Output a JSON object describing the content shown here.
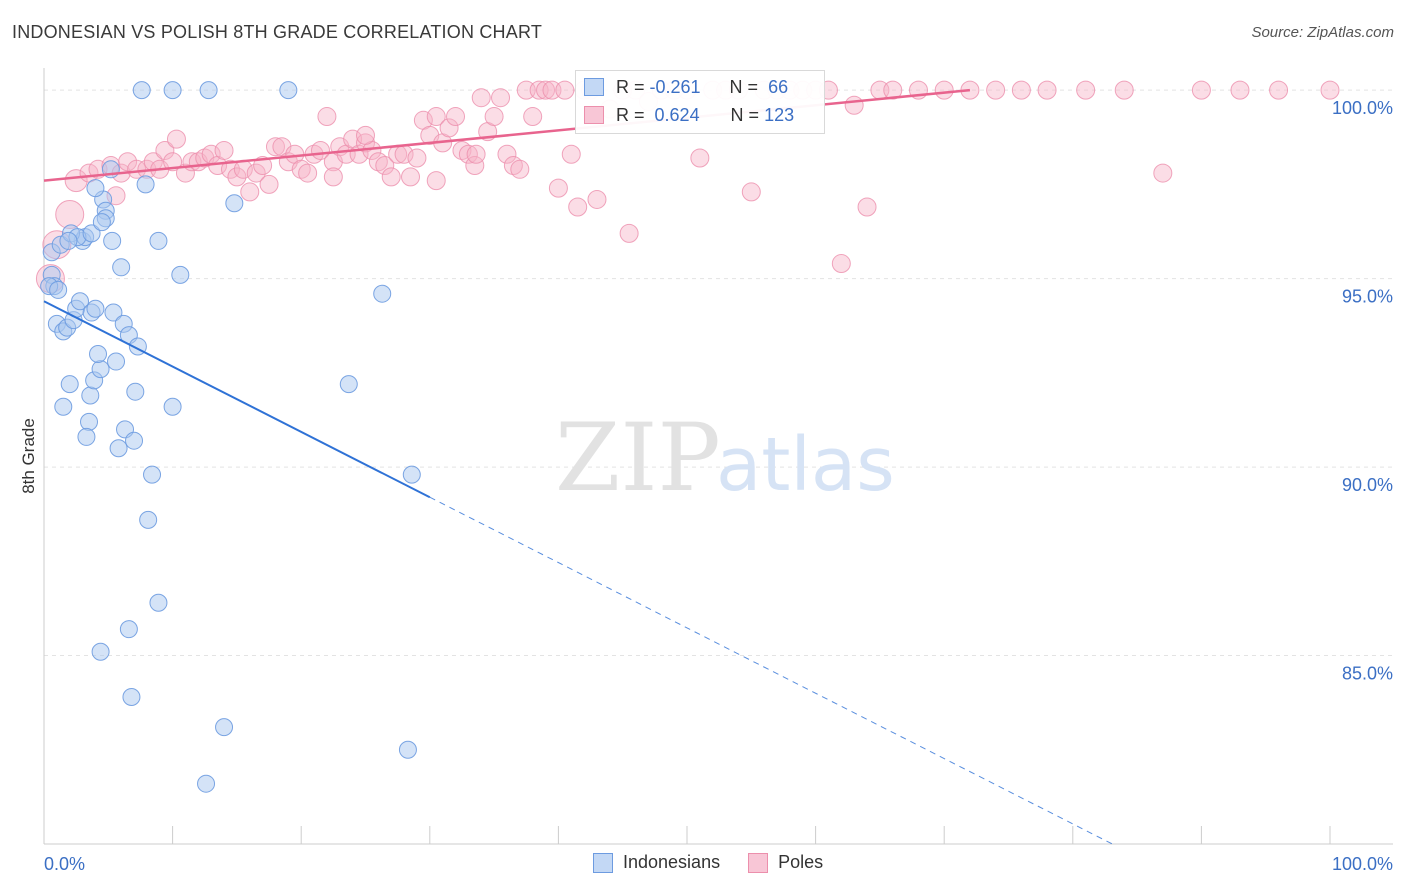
{
  "header": {
    "title": "INDONESIAN VS POLISH 8TH GRADE CORRELATION CHART",
    "source": "Source: ZipAtlas.com"
  },
  "watermark": {
    "zip": "ZIP",
    "atlas": "atlas"
  },
  "legend": {
    "series": [
      {
        "r_label": "R =",
        "r_value": "-0.261",
        "n_label": "N =",
        "n_value": "66"
      },
      {
        "r_label": "R =",
        "r_value": "0.624",
        "n_label": "N =",
        "n_value": "123"
      }
    ]
  },
  "bottom_legend": {
    "indonesians": "Indonesians",
    "poles": "Poles"
  },
  "colors": {
    "indonesians_fill": "#aac8f0",
    "indonesians_stroke": "#6d9be0",
    "indonesians_line": "#2f72d6",
    "poles_fill": "#f6b3c8",
    "poles_stroke": "#ec8fac",
    "poles_line": "#e8648e",
    "tick_label": "#3b6fc4"
  },
  "chart_data": {
    "type": "scatter",
    "title": "INDONESIAN VS POLISH 8TH GRADE CORRELATION CHART",
    "ylabel": "8th Grade",
    "xlabel": "",
    "xlim": [
      0,
      100
    ],
    "ylim": [
      80,
      100.8
    ],
    "x_tick_labels": [
      "0.0%",
      "100.0%"
    ],
    "y_ticks": [
      {
        "value": 100,
        "label": "100.0%"
      },
      {
        "value": 95,
        "label": "95.0%"
      },
      {
        "value": 90,
        "label": "90.0%"
      },
      {
        "value": 85,
        "label": "85.0%"
      }
    ],
    "grid": true,
    "series": [
      {
        "name": "Indonesians",
        "r": -0.261,
        "n": 66,
        "trend": {
          "x0": 0,
          "y0": 94.4,
          "x1": 30,
          "y1": 89.2,
          "dashed_to_x": 100
        },
        "points": [
          [
            7.6,
            100
          ],
          [
            10,
            100
          ],
          [
            12.8,
            100
          ],
          [
            19,
            100
          ],
          [
            0.6,
            95.7
          ],
          [
            0.6,
            95.1
          ],
          [
            0.8,
            94.8
          ],
          [
            1,
            93.8
          ],
          [
            1.3,
            95.9
          ],
          [
            1.5,
            93.6
          ],
          [
            1.8,
            93.7
          ],
          [
            2,
            92.2
          ],
          [
            1.5,
            91.6
          ],
          [
            2.3,
            93.9
          ],
          [
            2.5,
            94.2
          ],
          [
            2.8,
            94.4
          ],
          [
            3,
            96
          ],
          [
            3.2,
            96.1
          ],
          [
            3.5,
            91.2
          ],
          [
            3.3,
            90.8
          ],
          [
            3.7,
            94.1
          ],
          [
            3.6,
            91.9
          ],
          [
            4,
            94.2
          ],
          [
            3.9,
            92.3
          ],
          [
            4.4,
            92.6
          ],
          [
            4.2,
            93
          ],
          [
            4.6,
            97.1
          ],
          [
            4.8,
            96.8
          ],
          [
            4.8,
            96.6
          ],
          [
            5.2,
            97.9
          ],
          [
            5.3,
            96
          ],
          [
            5.4,
            94.1
          ],
          [
            5.6,
            92.8
          ],
          [
            5.8,
            90.5
          ],
          [
            6,
            95.3
          ],
          [
            6.2,
            93.8
          ],
          [
            6.3,
            91
          ],
          [
            6.6,
            93.5
          ],
          [
            7,
            90.7
          ],
          [
            7.1,
            92
          ],
          [
            7.3,
            93.2
          ],
          [
            7.9,
            97.5
          ],
          [
            8.1,
            88.6
          ],
          [
            8.4,
            89.8
          ],
          [
            8.9,
            96
          ],
          [
            8.9,
            86.4
          ],
          [
            10,
            91.6
          ],
          [
            10.6,
            95.1
          ],
          [
            6.6,
            85.7
          ],
          [
            4.4,
            85.1
          ],
          [
            6.8,
            83.9
          ],
          [
            14,
            83.1
          ],
          [
            12.6,
            81.6
          ],
          [
            14.8,
            97
          ],
          [
            23.7,
            92.2
          ],
          [
            26.3,
            94.6
          ],
          [
            28.3,
            82.5
          ],
          [
            28.6,
            89.8
          ],
          [
            0.4,
            94.8
          ],
          [
            1.1,
            94.7
          ],
          [
            2.1,
            96.2
          ],
          [
            2.6,
            96.1
          ],
          [
            3.7,
            96.2
          ],
          [
            4,
            97.4
          ],
          [
            4.5,
            96.5
          ],
          [
            1.9,
            96
          ]
        ]
      },
      {
        "name": "Poles",
        "r": 0.624,
        "n": 123,
        "trend": {
          "x0": 0,
          "y0": 97.6,
          "x1": 72,
          "y1": 100
        },
        "points": [
          [
            0.5,
            95
          ],
          [
            1,
            95.9
          ],
          [
            2,
            96.7
          ],
          [
            2.5,
            97.6
          ],
          [
            3.5,
            97.8
          ],
          [
            4.2,
            97.9
          ],
          [
            5.2,
            98
          ],
          [
            5.6,
            97.2
          ],
          [
            6,
            97.8
          ],
          [
            6.5,
            98.1
          ],
          [
            7.2,
            97.9
          ],
          [
            8,
            97.9
          ],
          [
            8.5,
            98.1
          ],
          [
            9,
            97.9
          ],
          [
            9.4,
            98.4
          ],
          [
            10,
            98.1
          ],
          [
            10.3,
            98.7
          ],
          [
            11,
            97.8
          ],
          [
            11.5,
            98.1
          ],
          [
            12,
            98.1
          ],
          [
            12.5,
            98.2
          ],
          [
            13,
            98.3
          ],
          [
            13.5,
            98
          ],
          [
            14,
            98.4
          ],
          [
            14.5,
            97.9
          ],
          [
            15,
            97.7
          ],
          [
            15.5,
            97.9
          ],
          [
            16,
            97.3
          ],
          [
            16.5,
            97.8
          ],
          [
            17,
            98
          ],
          [
            17.5,
            97.5
          ],
          [
            18,
            98.5
          ],
          [
            18.5,
            98.5
          ],
          [
            19,
            98.1
          ],
          [
            19.5,
            98.3
          ],
          [
            20,
            97.9
          ],
          [
            20.5,
            97.8
          ],
          [
            21,
            98.3
          ],
          [
            21.5,
            98.4
          ],
          [
            22,
            99.3
          ],
          [
            22.5,
            98.1
          ],
          [
            23,
            98.5
          ],
          [
            23.5,
            98.3
          ],
          [
            24,
            98.7
          ],
          [
            24.5,
            98.3
          ],
          [
            25,
            98.6
          ],
          [
            25.5,
            98.4
          ],
          [
            26,
            98.1
          ],
          [
            26.5,
            98
          ],
          [
            27,
            97.7
          ],
          [
            27.5,
            98.3
          ],
          [
            28,
            98.3
          ],
          [
            28.5,
            97.7
          ],
          [
            29,
            98.2
          ],
          [
            29.5,
            99.2
          ],
          [
            30,
            98.8
          ],
          [
            30.5,
            99.3
          ],
          [
            31,
            98.6
          ],
          [
            31.5,
            99
          ],
          [
            32,
            99.3
          ],
          [
            32.5,
            98.4
          ],
          [
            33,
            98.3
          ],
          [
            33.5,
            98
          ],
          [
            34,
            99.8
          ],
          [
            34.5,
            98.9
          ],
          [
            35,
            99.3
          ],
          [
            35.5,
            99.8
          ],
          [
            36,
            98.3
          ],
          [
            36.5,
            98
          ],
          [
            37,
            97.9
          ],
          [
            37.5,
            100
          ],
          [
            38,
            99.3
          ],
          [
            38.5,
            100
          ],
          [
            39,
            100
          ],
          [
            39.5,
            100
          ],
          [
            40,
            97.4
          ],
          [
            40.5,
            100
          ],
          [
            41,
            98.3
          ],
          [
            41.5,
            96.9
          ],
          [
            42,
            100
          ],
          [
            42.5,
            100
          ],
          [
            43,
            97.1
          ],
          [
            44,
            99.5
          ],
          [
            45,
            100
          ],
          [
            45.5,
            96.2
          ],
          [
            46,
            100
          ],
          [
            47,
            99.7
          ],
          [
            48,
            100
          ],
          [
            49,
            100
          ],
          [
            50,
            100
          ],
          [
            51,
            98.2
          ],
          [
            52,
            100
          ],
          [
            53,
            100
          ],
          [
            54,
            100
          ],
          [
            55,
            97.3
          ],
          [
            56,
            100
          ],
          [
            57,
            100
          ],
          [
            58,
            100
          ],
          [
            59,
            100
          ],
          [
            60,
            100
          ],
          [
            61,
            100
          ],
          [
            62,
            95.4
          ],
          [
            63,
            99.6
          ],
          [
            64,
            96.9
          ],
          [
            65,
            100
          ],
          [
            66,
            100
          ],
          [
            68,
            100
          ],
          [
            70,
            100
          ],
          [
            72,
            100
          ],
          [
            74,
            100
          ],
          [
            76,
            100
          ],
          [
            78,
            100
          ],
          [
            81,
            100
          ],
          [
            84,
            100
          ],
          [
            87,
            97.8
          ],
          [
            90,
            100
          ],
          [
            93,
            100
          ],
          [
            96,
            100
          ],
          [
            100,
            100
          ],
          [
            22.5,
            97.7
          ],
          [
            30.5,
            97.6
          ],
          [
            25,
            98.8
          ],
          [
            33.6,
            98.3
          ]
        ]
      }
    ]
  }
}
